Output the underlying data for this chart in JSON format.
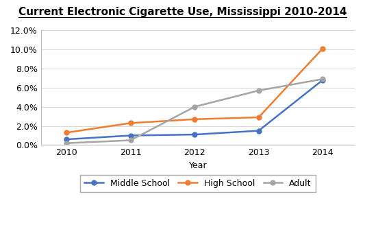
{
  "title": "Current Electronic Cigarette Use, Mississippi 2010-2014",
  "xlabel": "Year",
  "years": [
    2010,
    2011,
    2012,
    2013,
    2014
  ],
  "middle_school": [
    0.006,
    0.01,
    0.011,
    0.015,
    0.068
  ],
  "high_school": [
    0.013,
    0.023,
    0.027,
    0.029,
    0.101
  ],
  "adult": [
    0.002,
    0.005,
    0.04,
    0.057,
    0.069
  ],
  "middle_school_color": "#4472C4",
  "high_school_color": "#ED7D31",
  "adult_color": "#A5A5A5",
  "ylim": [
    0.0,
    0.12
  ],
  "yticks": [
    0.0,
    0.02,
    0.04,
    0.06,
    0.08,
    0.1,
    0.12
  ],
  "background_color": "#FFFFFF",
  "grid_color": "#D9D9D9",
  "legend_labels": [
    "Middle School",
    "High School",
    "Adult"
  ],
  "title_fontsize": 11,
  "tick_fontsize": 9,
  "label_fontsize": 9
}
